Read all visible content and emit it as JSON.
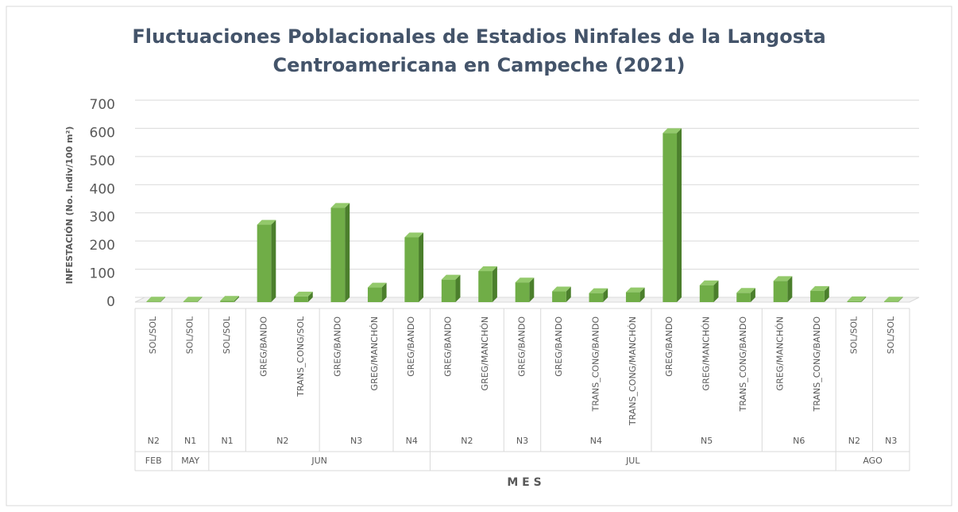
{
  "chart_data": {
    "type": "bar3d",
    "title": "Fluctuaciones Poblacionales de Estadios Ninfales de la Langosta Centroamericana en Campeche (2021)",
    "y_label": "INFESTACIÓN  (No. Indiv/100 m²)",
    "x_label": "M E S",
    "categories": [
      "SOL/SOL",
      "SOL/SOL",
      "SOL/SOL",
      "GREG/BANDO",
      "TRANS_CONG/SOL",
      "GREG/BANDO",
      "GREG/MANCHÓN",
      "GREG/BANDO",
      "GREG/BANDO",
      "GREG/MANCHÓN",
      "GREG/BANDO",
      "GREG/BANDO",
      "TRANS_CONG/BANDO",
      "TRANS_CONG/MANCHÓN",
      "GREG/BANDO",
      "GREG/MANCHÓN",
      "TRANS_CONG/BANDO",
      "GREG/MANCHÓN",
      "TRANS_CONG/BANDO",
      "SOL/SOL",
      "SOL/SOL"
    ],
    "stages": [
      "N2",
      "N1",
      "N1",
      "N2",
      null,
      "N3",
      null,
      "N4",
      "N2",
      null,
      "N3",
      "N4",
      null,
      null,
      "N5",
      null,
      null,
      "N6",
      null,
      "N2",
      "N3"
    ],
    "months": [
      "FEB",
      "MAY",
      "JUN",
      null,
      null,
      null,
      null,
      null,
      "JUL",
      null,
      null,
      null,
      null,
      null,
      null,
      null,
      null,
      null,
      null,
      "AGO",
      null
    ],
    "values": [
      2,
      2,
      5,
      275,
      20,
      335,
      52,
      230,
      80,
      110,
      70,
      38,
      32,
      35,
      600,
      60,
      33,
      75,
      40,
      3,
      2
    ],
    "color": "#70ad47",
    "ylim": [
      0,
      700
    ],
    "yticks": [
      0,
      100,
      200,
      300,
      400,
      500,
      600,
      700
    ],
    "grid": true
  }
}
